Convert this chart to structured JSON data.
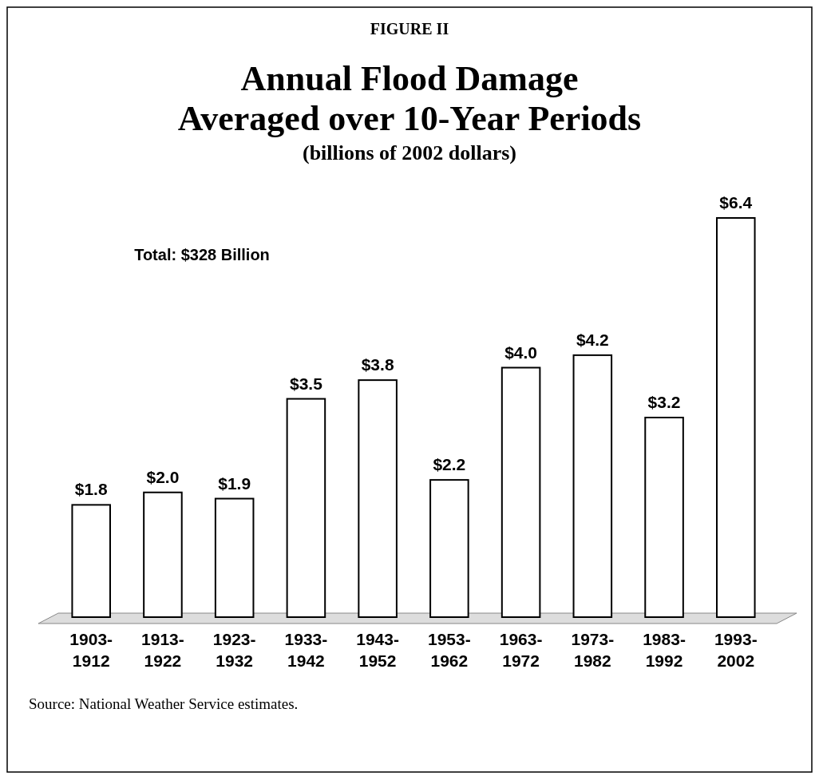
{
  "chart_data": {
    "type": "bar",
    "title": "Annual Flood Damage\nAveraged over 10-Year Periods",
    "subtitle": "(billions of 2002 dollars)",
    "annotations": [
      "FIGURE II",
      "Total: $328 Billion",
      "Source: National Weather Service estimates."
    ],
    "categories": [
      "1903-1912",
      "1913-1922",
      "1923-1932",
      "1933-1942",
      "1943-1952",
      "1953-1962",
      "1963-1972",
      "1973-1982",
      "1983-1992",
      "1993-2002"
    ],
    "values": [
      1.8,
      2.0,
      1.9,
      3.5,
      3.8,
      2.2,
      4.0,
      4.2,
      3.2,
      6.4
    ],
    "value_labels": [
      "$1.8",
      "$2.0",
      "$1.9",
      "$3.5",
      "$3.8",
      "$2.2",
      "$4.0",
      "$4.2",
      "$3.2",
      "$6.4"
    ],
    "color": "#ffffff"
  }
}
